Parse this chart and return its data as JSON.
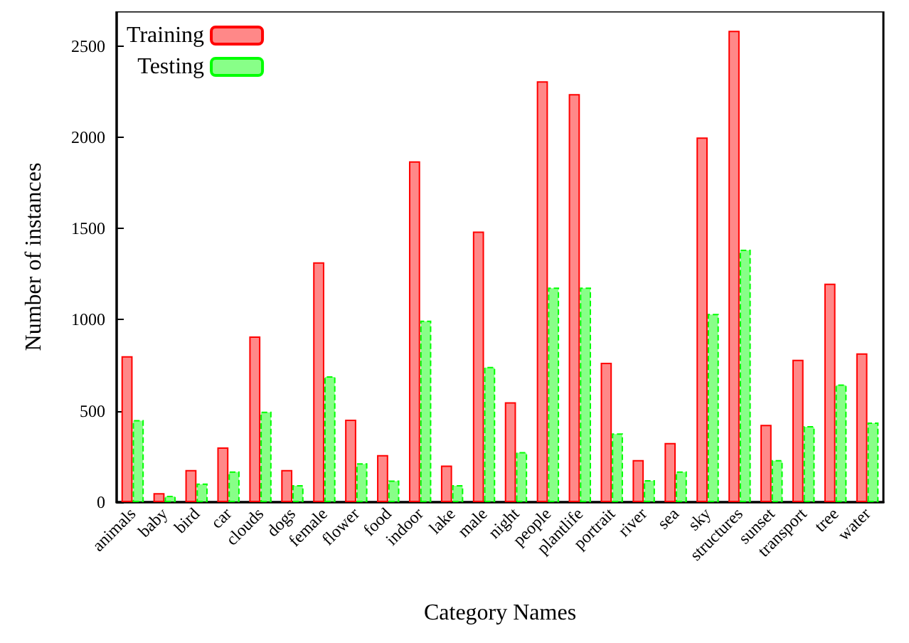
{
  "chart_data": {
    "type": "bar",
    "xlabel": "Category Names",
    "ylabel": "Number of instances",
    "categories": [
      "animals",
      "baby",
      "bird",
      "car",
      "clouds",
      "dogs",
      "female",
      "flower",
      "food",
      "indoor",
      "lake",
      "male",
      "night",
      "people",
      "plantlife",
      "portrait",
      "river",
      "sea",
      "sky",
      "structures",
      "sunset",
      "transport",
      "tree",
      "water"
    ],
    "series": [
      {
        "name": "Training",
        "color": "#ff8888",
        "line_style": "solid",
        "values": [
          800,
          50,
          176,
          300,
          908,
          176,
          1315,
          452,
          258,
          1868,
          201,
          1483,
          548,
          2307,
          2237,
          764,
          231,
          325,
          1999,
          2584,
          424,
          781,
          1198,
          816
        ]
      },
      {
        "name": "Testing",
        "color": "#88ff88",
        "line_style": "dashed",
        "values": [
          450,
          35,
          102,
          169,
          496,
          94,
          690,
          213,
          119,
          995,
          94,
          742,
          275,
          1176,
          1176,
          377,
          121,
          169,
          1032,
          1384,
          231,
          417,
          645,
          437
        ]
      }
    ],
    "ylim": [
      0,
      2690
    ],
    "yticks": [
      0,
      500,
      1000,
      1500,
      2000,
      2500
    ],
    "grid": false,
    "legend": "top left"
  }
}
